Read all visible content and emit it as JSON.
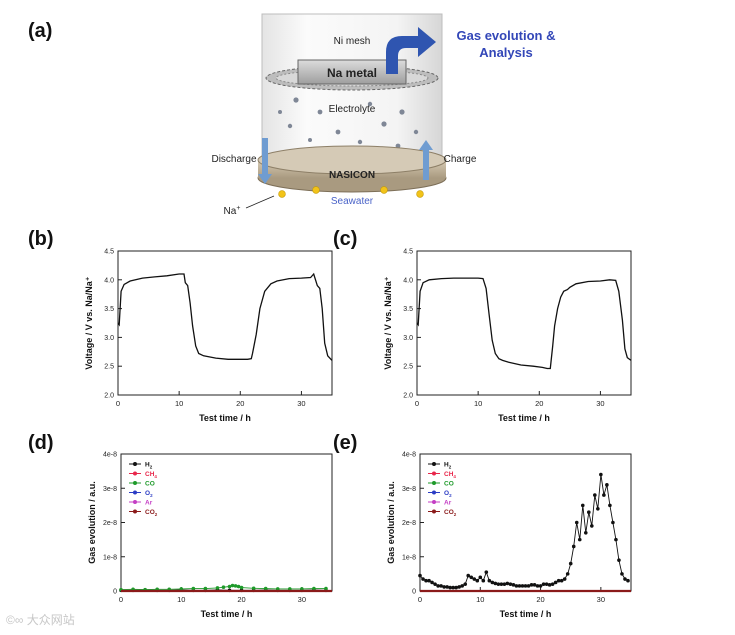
{
  "panels": {
    "a": "(a)",
    "b": "(b)",
    "c": "(c)",
    "d": "(d)",
    "e": "(e)"
  },
  "schematic": {
    "ni_mesh": "Ni mesh",
    "na_metal": "Na metal",
    "electrolyte": "Electrolyte",
    "nasicon": "NASICON",
    "discharge": "Discharge",
    "charge": "Charge",
    "na_ion_base": "Na",
    "na_ion_sup": "+",
    "seawater": "Seawater",
    "gas_line1": "Gas evolution &",
    "gas_line2": "Analysis",
    "colors": {
      "gas_text": "#3347b8",
      "seawater_text": "#4a63c8",
      "arrow_blue": "#2f55b0",
      "sodium_dot": "#f2c319"
    }
  },
  "watermark": "©∞ 大众网站",
  "chart_data": [
    {
      "id": "b",
      "type": "line",
      "xlabel": "Test time / h",
      "ylabel": "Voltage / V vs. Na/Na⁺",
      "xlim": [
        0,
        35
      ],
      "ylim": [
        2.0,
        4.5
      ],
      "xticks": [
        0,
        10,
        20,
        30
      ],
      "yticks": [
        2.0,
        2.5,
        3.0,
        3.5,
        4.0,
        4.5
      ],
      "ytick_labels": [
        "2.0",
        "2.5",
        "3.0",
        "3.5",
        "4.0",
        "4.5"
      ],
      "series": [
        {
          "name": "voltage",
          "color": "#111111",
          "x": [
            0,
            0.2,
            0.5,
            1,
            2,
            4,
            6,
            8,
            10,
            10.8,
            11,
            11.4,
            11.8,
            12.2,
            12.7,
            13.2,
            14,
            16,
            18,
            20,
            21.2,
            21.8,
            22,
            22.6,
            23.2,
            24,
            25,
            26,
            28,
            30,
            31.5,
            32,
            32.6,
            33,
            33.4,
            33.8,
            34.3,
            35
          ],
          "y": [
            3.25,
            3.22,
            3.8,
            3.92,
            3.98,
            4.03,
            4.05,
            4.07,
            4.1,
            4.1,
            3.95,
            3.9,
            3.6,
            3.2,
            2.85,
            2.72,
            2.68,
            2.64,
            2.62,
            2.62,
            2.62,
            2.63,
            2.72,
            3.05,
            3.5,
            3.8,
            3.93,
            3.98,
            4.02,
            4.03,
            4.04,
            4.1,
            3.9,
            3.85,
            3.5,
            2.9,
            2.68,
            2.6
          ]
        }
      ]
    },
    {
      "id": "c",
      "type": "line",
      "xlabel": "Test time / h",
      "ylabel": "Voltage / V vs. Na/Na⁺",
      "xlim": [
        0,
        35
      ],
      "ylim": [
        2.0,
        4.5
      ],
      "xticks": [
        0,
        10,
        20,
        30
      ],
      "yticks": [
        2.0,
        2.5,
        3.0,
        3.5,
        4.0,
        4.5
      ],
      "ytick_labels": [
        "2.0",
        "2.5",
        "3.0",
        "3.5",
        "4.0",
        "4.5"
      ],
      "series": [
        {
          "name": "voltage",
          "color": "#111111",
          "x": [
            0,
            0.2,
            0.5,
            1,
            2,
            4,
            6,
            8,
            10,
            10.8,
            11.3,
            11.8,
            12.3,
            12.8,
            13.4,
            14,
            15,
            17,
            19,
            20.5,
            21.3,
            21.8,
            22.2,
            22.5,
            23,
            23.5,
            24,
            24.6,
            25,
            26,
            28,
            30,
            31.5,
            32.5,
            33,
            33.6,
            34,
            34.4,
            35
          ],
          "y": [
            3.25,
            3.22,
            3.8,
            3.95,
            4.0,
            4.02,
            4.03,
            4.03,
            4.03,
            4.02,
            3.85,
            3.4,
            2.95,
            2.72,
            2.63,
            2.6,
            2.57,
            2.52,
            2.5,
            2.48,
            2.46,
            2.46,
            2.85,
            3.2,
            3.5,
            3.7,
            3.8,
            3.83,
            3.87,
            3.93,
            3.97,
            3.98,
            4.0,
            3.99,
            3.8,
            3.3,
            2.8,
            2.65,
            2.6
          ]
        }
      ]
    },
    {
      "id": "d",
      "type": "scatter",
      "xlabel": "Test time / h",
      "ylabel": "Gas evolution / a.u.",
      "xlim": [
        0,
        35
      ],
      "ylim": [
        0,
        4e-08
      ],
      "xticks": [
        0,
        10,
        20,
        30
      ],
      "yticks": [
        0,
        1e-08,
        2e-08,
        3e-08,
        4e-08
      ],
      "ytick_labels": [
        "0",
        "1e-8",
        "2e-8",
        "3e-8",
        "4e-8"
      ],
      "legend_position": "top-left",
      "legend": [
        {
          "base": "H",
          "sub": "2",
          "color": "#111111"
        },
        {
          "base": "CH",
          "sub": "4",
          "color": "#e8264a"
        },
        {
          "base": "CO",
          "sub": "",
          "color": "#1e9a2a"
        },
        {
          "base": "O",
          "sub": "2",
          "color": "#2b3cc4"
        },
        {
          "base": "Ar",
          "sub": "",
          "color": "#c43ec4"
        },
        {
          "base": "CO",
          "sub": "2",
          "color": "#8b1a1a"
        }
      ],
      "series": [
        {
          "name": "H2",
          "color": "#111111",
          "x": [
            0,
            2,
            4,
            6,
            8,
            10,
            12,
            14,
            16,
            18,
            20,
            22,
            24,
            26,
            28,
            30,
            32,
            34
          ],
          "y": [
            2e-10,
            2e-10,
            3e-10,
            2e-10,
            2e-10,
            3e-10,
            2e-10,
            2e-10,
            3e-10,
            2e-10,
            2e-10,
            2e-10,
            3e-10,
            2e-10,
            2e-10,
            2e-10,
            3e-10,
            2e-10
          ]
        },
        {
          "name": "CO",
          "color": "#1e9a2a",
          "x": [
            0,
            2,
            4,
            6,
            8,
            10,
            12,
            14,
            16,
            17,
            18,
            18.5,
            19,
            19.5,
            20,
            22,
            24,
            26,
            28,
            30,
            32,
            34
          ],
          "y": [
            4e-10,
            5e-10,
            4e-10,
            5e-10,
            5e-10,
            6e-10,
            7e-10,
            7e-10,
            9e-10,
            1.1e-09,
            1.3e-09,
            1.6e-09,
            1.5e-09,
            1.3e-09,
            1e-09,
            8e-10,
            7e-10,
            6e-10,
            6e-10,
            6e-10,
            7e-10,
            7e-10
          ]
        },
        {
          "name": "CO2",
          "color": "#8b1a1a",
          "x": [
            0,
            35
          ],
          "y": [
            0,
            0
          ],
          "style": "line"
        }
      ]
    },
    {
      "id": "e",
      "type": "scatter",
      "xlabel": "Test time / h",
      "ylabel": "Gas evolution / a.u.",
      "xlim": [
        0,
        35
      ],
      "ylim": [
        0,
        4e-08
      ],
      "xticks": [
        0,
        10,
        20,
        30
      ],
      "yticks": [
        0,
        1e-08,
        2e-08,
        3e-08,
        4e-08
      ],
      "ytick_labels": [
        "0",
        "1e-8",
        "2e-8",
        "3e-8",
        "4e-8"
      ],
      "legend_position": "top-left",
      "legend": [
        {
          "base": "H",
          "sub": "2",
          "color": "#111111"
        },
        {
          "base": "CH",
          "sub": "4",
          "color": "#e8264a"
        },
        {
          "base": "CO",
          "sub": "",
          "color": "#1e9a2a"
        },
        {
          "base": "O",
          "sub": "2",
          "color": "#2b3cc4"
        },
        {
          "base": "Ar",
          "sub": "",
          "color": "#c43ec4"
        },
        {
          "base": "CO",
          "sub": "2",
          "color": "#8b1a1a"
        }
      ],
      "series": [
        {
          "name": "H2",
          "color": "#111111",
          "x": [
            0,
            0.5,
            1,
            1.5,
            2,
            2.5,
            3,
            3.5,
            4,
            4.5,
            5,
            5.5,
            6,
            6.5,
            7,
            7.5,
            8,
            8.5,
            9,
            9.5,
            10,
            10.5,
            11,
            11.5,
            12,
            12.5,
            13,
            13.5,
            14,
            14.5,
            15,
            15.5,
            16,
            16.5,
            17,
            17.5,
            18,
            18.5,
            19,
            19.5,
            20,
            20.5,
            21,
            21.5,
            22,
            22.5,
            23,
            23.5,
            24,
            24.5,
            25,
            25.5,
            26,
            26.5,
            27,
            27.5,
            28,
            28.5,
            29,
            29.5,
            30,
            30.5,
            31,
            31.5,
            32,
            32.5,
            33,
            33.5,
            34,
            34.5
          ],
          "y": [
            4.5e-09,
            3.5e-09,
            3e-09,
            3e-09,
            2.5e-09,
            2e-09,
            1.5e-09,
            1.5e-09,
            1.2e-09,
            1.2e-09,
            1e-09,
            1e-09,
            1e-09,
            1.2e-09,
            1.5e-09,
            2e-09,
            4.5e-09,
            4e-09,
            3.5e-09,
            3e-09,
            4e-09,
            3e-09,
            5.5e-09,
            3e-09,
            2.5e-09,
            2.2e-09,
            2e-09,
            2e-09,
            2e-09,
            2.2e-09,
            2e-09,
            1.8e-09,
            1.5e-09,
            1.5e-09,
            1.5e-09,
            1.5e-09,
            1.5e-09,
            1.8e-09,
            1.8e-09,
            1.5e-09,
            1.5e-09,
            2e-09,
            2e-09,
            1.8e-09,
            2e-09,
            2.5e-09,
            3e-09,
            3e-09,
            3.5e-09,
            5e-09,
            8e-09,
            1.3e-08,
            2e-08,
            1.5e-08,
            2.5e-08,
            1.7e-08,
            2.3e-08,
            1.9e-08,
            2.8e-08,
            2.4e-08,
            3.4e-08,
            2.8e-08,
            3.1e-08,
            2.5e-08,
            2e-08,
            1.5e-08,
            9e-09,
            5e-09,
            3.5e-09,
            3e-09
          ]
        },
        {
          "name": "CO2",
          "color": "#8b1a1a",
          "x": [
            0,
            35
          ],
          "y": [
            0,
            0
          ],
          "style": "line"
        }
      ]
    }
  ]
}
